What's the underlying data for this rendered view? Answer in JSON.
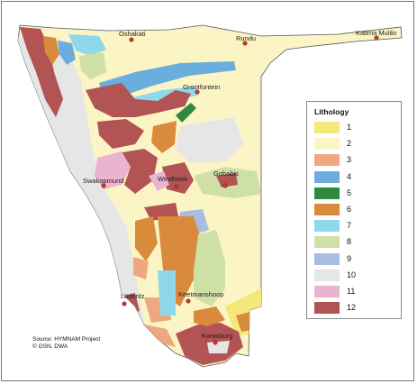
{
  "map": {
    "towns": [
      {
        "name": "Oshakati",
        "label_id": "town-label-oshakati"
      },
      {
        "name": "Rundu",
        "label_id": "town-label-rundu"
      },
      {
        "name": "Katima Mulilo",
        "label_id": "town-label-katima-mulilo"
      },
      {
        "name": "Grootfontein",
        "label_id": "town-label-grootfontein"
      },
      {
        "name": "Swakopmund",
        "label_id": "town-label-swakopmund"
      },
      {
        "name": "Windhoek",
        "label_id": "town-label-windhoek"
      },
      {
        "name": "Gobabis",
        "label_id": "town-label-gobabis"
      },
      {
        "name": "Lüderitz",
        "label_id": "town-label-luderitz"
      },
      {
        "name": "Keetmanshoop",
        "label_id": "town-label-keetmanshoop"
      },
      {
        "name": "Karasburg",
        "label_id": "town-label-karasburg"
      }
    ],
    "town_marker_color": "#c0392b",
    "background_color": "#faf3c0"
  },
  "legend": {
    "title": "Lithology",
    "items": [
      {
        "label": "1",
        "color": "#f5e77a"
      },
      {
        "label": "2",
        "color": "#fbf4c4"
      },
      {
        "label": "3",
        "color": "#eea77e"
      },
      {
        "label": "4",
        "color": "#6baedd"
      },
      {
        "label": "5",
        "color": "#2e8b3e"
      },
      {
        "label": "6",
        "color": "#d98a3a"
      },
      {
        "label": "7",
        "color": "#8fd8ea"
      },
      {
        "label": "8",
        "color": "#cfe0a6"
      },
      {
        "label": "9",
        "color": "#a7bde2"
      },
      {
        "label": "10",
        "color": "#e6e6e6"
      },
      {
        "label": "11",
        "color": "#eab3cf"
      },
      {
        "label": "12",
        "color": "#b25454"
      }
    ]
  },
  "source": {
    "line1": "Source: HYMNAM Project",
    "line2": "© GSN, DWA"
  }
}
